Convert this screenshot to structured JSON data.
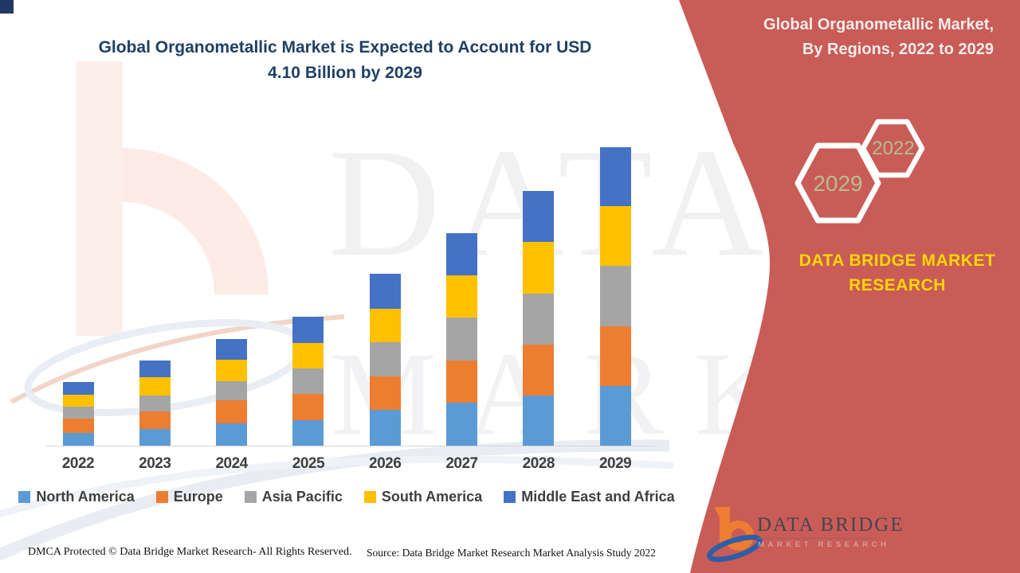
{
  "page": {
    "corner_square_color": "#1f3864",
    "background_color": "#ffffff"
  },
  "chart": {
    "title_line1": "Global Organometallic Market is Expected to Account for USD",
    "title_line2": "4.10 Billion by 2029",
    "title_color": "#1e4066",
    "axis_line_color": "#d6d6d6"
  },
  "chart_data": {
    "type": "bar",
    "stacked": true,
    "title": "Global Organometallic Market is Expected to Account for USD 4.10 Billion by 2029",
    "unit": "USD Billion (estimated from bar heights)",
    "categories": [
      "2022",
      "2023",
      "2024",
      "2025",
      "2026",
      "2027",
      "2028",
      "2029"
    ],
    "series": [
      {
        "name": "North America",
        "color": "#5B9BD5",
        "values": [
          0.18,
          0.23,
          0.31,
          0.35,
          0.49,
          0.59,
          0.69,
          0.82
        ]
      },
      {
        "name": "Europe",
        "color": "#ED7D31",
        "values": [
          0.19,
          0.24,
          0.31,
          0.36,
          0.46,
          0.58,
          0.7,
          0.82
        ]
      },
      {
        "name": "Asia Pacific",
        "color": "#A5A5A5",
        "values": [
          0.17,
          0.22,
          0.27,
          0.35,
          0.47,
          0.59,
          0.7,
          0.83
        ]
      },
      {
        "name": "South America",
        "color": "#FFC000",
        "values": [
          0.16,
          0.25,
          0.29,
          0.35,
          0.46,
          0.58,
          0.71,
          0.82
        ]
      },
      {
        "name": "Middle East and Africa",
        "color": "#4472C4",
        "values": [
          0.17,
          0.23,
          0.29,
          0.36,
          0.48,
          0.58,
          0.7,
          0.81
        ]
      }
    ],
    "totals": [
      0.87,
      1.17,
      1.47,
      1.77,
      2.36,
      2.92,
      3.5,
      4.1
    ],
    "ylim": [
      0,
      4.4
    ],
    "grid": false,
    "legend_position": "bottom",
    "xlabel": "",
    "ylabel": ""
  },
  "panel": {
    "background_color": "#c6534e",
    "title_line1": "Global Organometallic Market,",
    "title_line2": "By Regions, 2022 to 2029",
    "hexagon_large_year": "2029",
    "hexagon_small_year": "2022",
    "hexagon_year_color": "#b6bd8f",
    "brand_line1": "DATA BRIDGE MARKET",
    "brand_line2": "RESEARCH",
    "brand_color": "#ffd700",
    "logo_wordmark": "DATA BRIDGE",
    "logo_subtext": "MARKET RESEARCH"
  },
  "watermark": {
    "line1": "DATA BRIDGE",
    "line2": "MARKET RESEARCH"
  },
  "footer": {
    "left": "DMCA Protected © Data Bridge Market Research- All Rights Reserved.",
    "right": "Source: Data Bridge Market Research Market Analysis Study 2022"
  }
}
